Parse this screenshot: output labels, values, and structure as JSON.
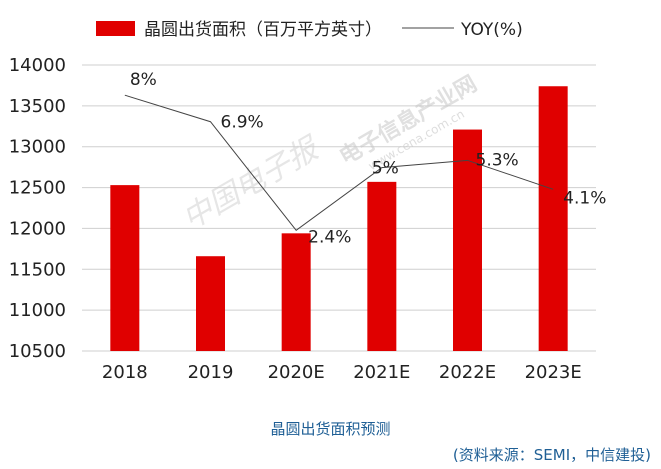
{
  "chart_data": {
    "type": "bar",
    "categories": [
      "2018",
      "2019",
      "2020E",
      "2021E",
      "2022E",
      "2023E"
    ],
    "series": [
      {
        "name": "晶圆出货面积（百万平方英寸）",
        "kind": "bar",
        "color": "#e00000",
        "values": [
          12530,
          11660,
          11940,
          12570,
          13210,
          13740
        ]
      },
      {
        "name": "YOY(%)",
        "kind": "line",
        "color": "#444444",
        "values": [
          8,
          6.9,
          2.4,
          5,
          5.3,
          4.1
        ],
        "labels": [
          "8%",
          "6.9%",
          "2.4%",
          "5%",
          "5.3%",
          "4.1%"
        ]
      }
    ],
    "y_axis": {
      "min": 10500,
      "max": 14000,
      "step": 500,
      "ticks": [
        "14000",
        "13500",
        "13000",
        "12500",
        "12000",
        "11500",
        "11000",
        "10500"
      ]
    },
    "y2_axis": {
      "min": -2.6,
      "max": 9.25
    },
    "grid": true,
    "legend_position": "top"
  },
  "watermark": {
    "site": "电子信息产业网",
    "url": "www.cena.com.cn",
    "script": "中国电子报"
  },
  "caption": "晶圆出货面积预测",
  "source": "(资料来源：SEMI，中信建投)"
}
